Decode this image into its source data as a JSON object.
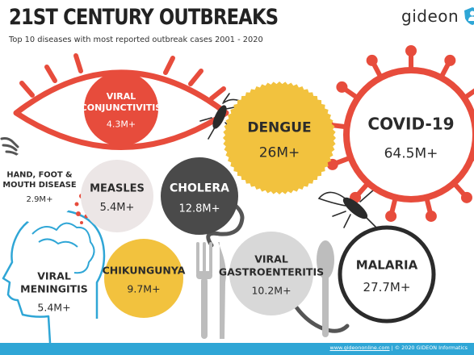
{
  "header": {
    "title": "21ST CENTURY OUTBREAKS",
    "subtitle": "Top 10 diseases with most reported outbreak cases 2001 - 2020"
  },
  "brand": {
    "name": "gideon",
    "logo_icon": "shield-person-icon",
    "accent": "#2fa6d6"
  },
  "footer": {
    "link": "www.gideononline.com",
    "separator": " | © 2020 GIDEON Informatics"
  },
  "chart_data": {
    "type": "bubble",
    "unit": "M",
    "items": [
      {
        "key": "covid",
        "name": "COVID-19",
        "value_label": "64.5M+",
        "value": 64.5,
        "color": "#e74c3c",
        "icon": "virus-icon"
      },
      {
        "key": "malaria",
        "name": "MALARIA",
        "value_label": "27.7M+",
        "value": 27.7,
        "color": "#2b2b2b",
        "icon": "mosquito-icon"
      },
      {
        "key": "dengue",
        "name": "DENGUE",
        "value_label": "26M+",
        "value": 26.0,
        "color": "#f2c23e",
        "icon": "mosquito-icon"
      },
      {
        "key": "cholera",
        "name": "CHOLERA",
        "value_label": "12.8M+",
        "value": 12.8,
        "color": "#4a4a4a",
        "icon": "bacteria-icon"
      },
      {
        "key": "gastro",
        "name": "VIRAL GASTROENTERITIS",
        "value_label": "10.2M+",
        "value": 10.2,
        "color": "#d8d8d8",
        "icon": "cutlery-icon"
      },
      {
        "key": "chik",
        "name": "CHIKUNGUNYA",
        "value_label": "9.7M+",
        "value": 9.7,
        "color": "#f2c23e",
        "icon": "mosquito-icon"
      },
      {
        "key": "measles",
        "name": "MEASLES",
        "value_label": "5.4M+",
        "value": 5.4,
        "color": "#ece6e6",
        "icon": "rash-dots-icon"
      },
      {
        "key": "meningitis",
        "name": "VIRAL MENINGITIS",
        "value_label": "5.4M+",
        "value": 5.4,
        "color": "#ffffff",
        "icon": "head-outline-icon"
      },
      {
        "key": "conj",
        "name": "VIRAL CONJUNCTIVITIS",
        "value_label": "4.3M+",
        "value": 4.3,
        "color": "#e74c3c",
        "icon": "eye-icon"
      },
      {
        "key": "hfmd",
        "name": "HAND, FOOT & MOUTH DISEASE",
        "value_label": "2.9M+",
        "value": 2.9,
        "color": "#ffffff",
        "icon": "hand-icon"
      }
    ]
  }
}
